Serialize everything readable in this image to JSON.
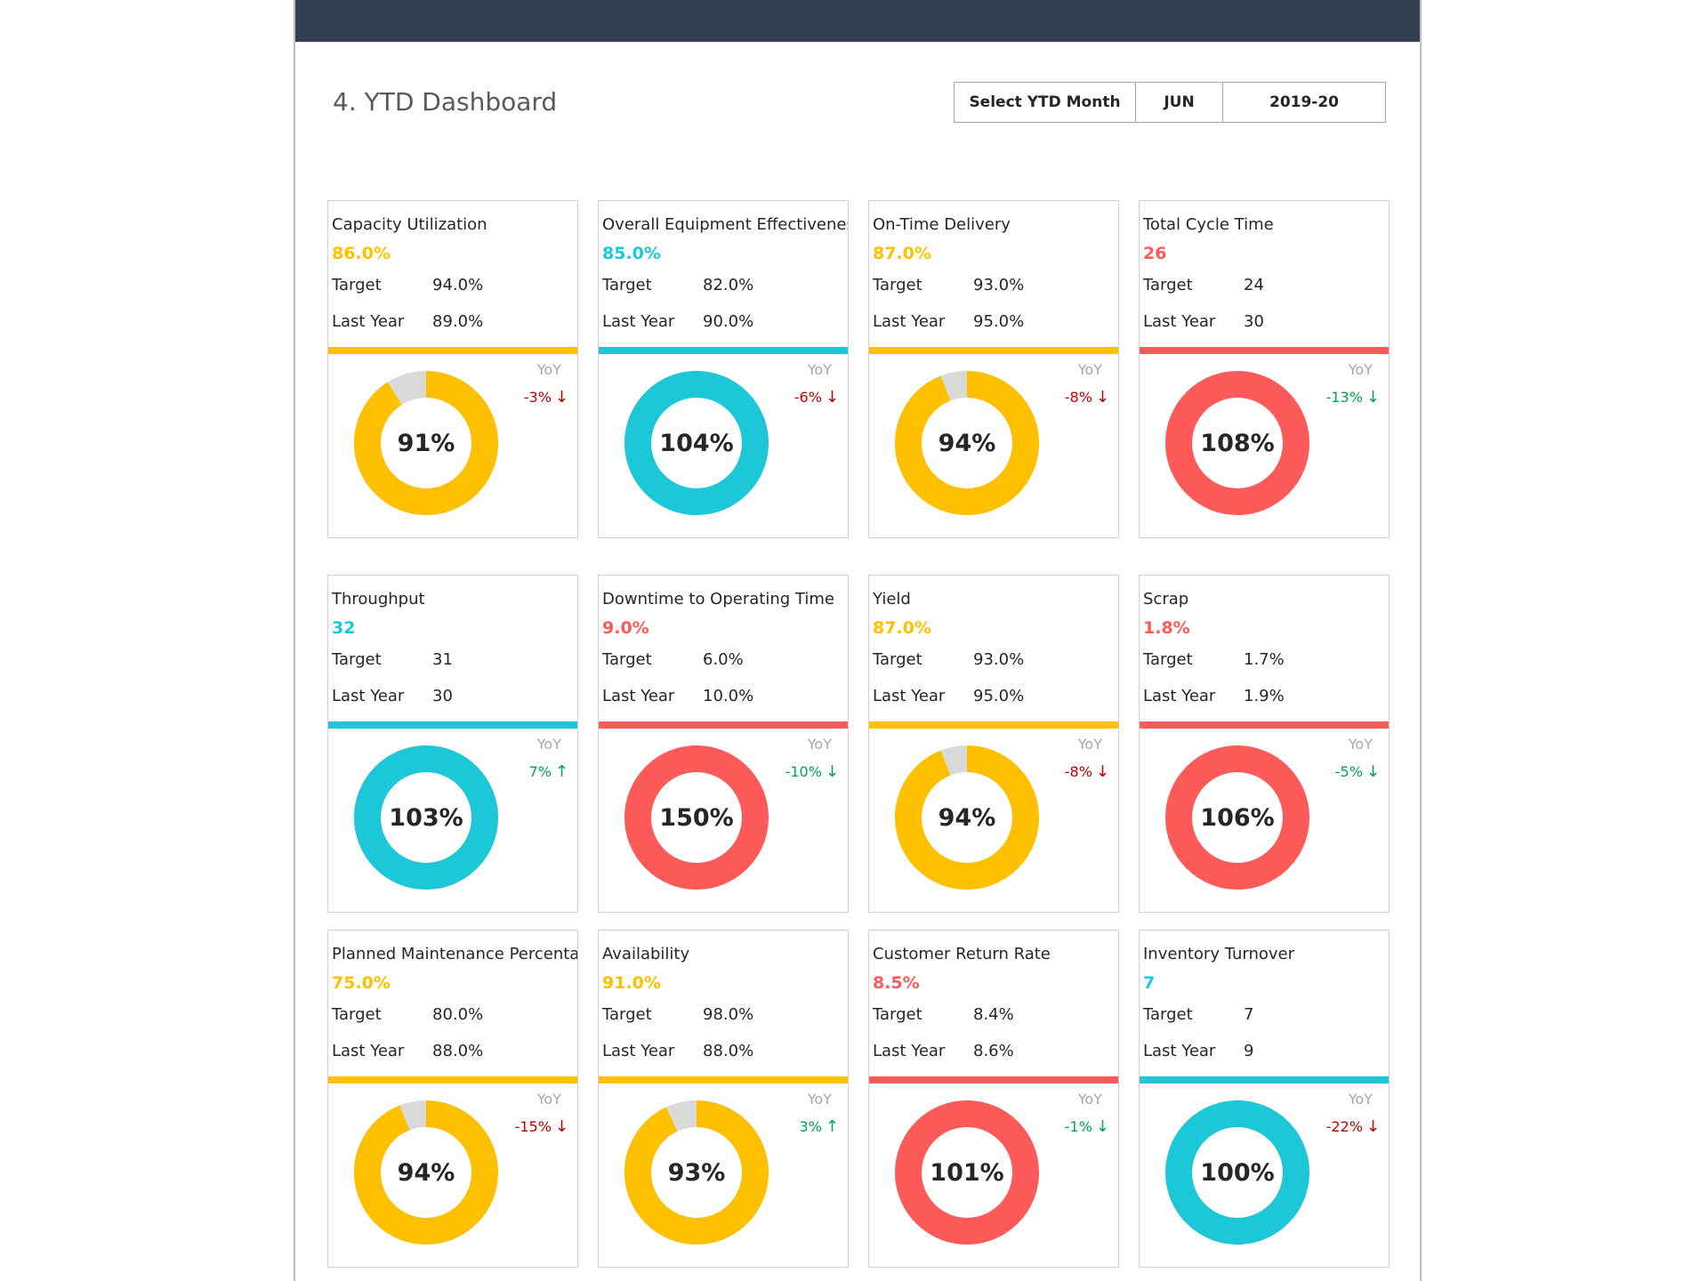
{
  "dashboard": {
    "title": "4. YTD Dashboard",
    "selector": {
      "label": "Select YTD Month",
      "month": "JUN",
      "year": "2019-20"
    }
  },
  "labels": {
    "target": "Target",
    "last_year": "Last Year",
    "yoy": "YoY"
  },
  "colors": {
    "header": "#333f50",
    "yellow": "#ffc000",
    "cyan": "#1cc7d8",
    "red": "#ff5a5a",
    "neg": "#c00000",
    "pos": "#00a651",
    "track": "#d9d9d9"
  },
  "cards": [
    {
      "name": "Capacity Utilization",
      "value": "86.0%",
      "target": "94.0%",
      "last_year": "89.0%",
      "color": "yellow",
      "pct": "91%",
      "fill": 0.91,
      "yoy": "-3%",
      "yoy_dir": "down",
      "yoy_color": "neg"
    },
    {
      "name": "Overall Equipment Effectiveness",
      "value": "85.0%",
      "target": "82.0%",
      "last_year": "90.0%",
      "color": "cyan",
      "pct": "104%",
      "fill": 1.0,
      "yoy": "-6%",
      "yoy_dir": "down",
      "yoy_color": "neg"
    },
    {
      "name": "On-Time Delivery",
      "value": "87.0%",
      "target": "93.0%",
      "last_year": "95.0%",
      "color": "yellow",
      "pct": "94%",
      "fill": 0.94,
      "yoy": "-8%",
      "yoy_dir": "down",
      "yoy_color": "neg"
    },
    {
      "name": "Total Cycle Time",
      "value": "26",
      "target": "24",
      "last_year": "30",
      "color": "red",
      "pct": "108%",
      "fill": 1.0,
      "yoy": "-13%",
      "yoy_dir": "down",
      "yoy_color": "pos"
    },
    {
      "name": "Throughput",
      "value": "32",
      "target": "31",
      "last_year": "30",
      "color": "cyan",
      "pct": "103%",
      "fill": 1.0,
      "yoy": "7%",
      "yoy_dir": "up",
      "yoy_color": "pos"
    },
    {
      "name": "Downtime to Operating Time",
      "value": "9.0%",
      "target": "6.0%",
      "last_year": "10.0%",
      "color": "red",
      "pct": "150%",
      "fill": 1.0,
      "yoy": "-10%",
      "yoy_dir": "down",
      "yoy_color": "pos"
    },
    {
      "name": "Yield",
      "value": "87.0%",
      "target": "93.0%",
      "last_year": "95.0%",
      "color": "yellow",
      "pct": "94%",
      "fill": 0.94,
      "yoy": "-8%",
      "yoy_dir": "down",
      "yoy_color": "neg"
    },
    {
      "name": "Scrap",
      "value": "1.8%",
      "target": "1.7%",
      "last_year": "1.9%",
      "color": "red",
      "pct": "106%",
      "fill": 1.0,
      "yoy": "-5%",
      "yoy_dir": "down",
      "yoy_color": "pos"
    },
    {
      "name": "Planned Maintenance Percentage",
      "value": "75.0%",
      "target": "80.0%",
      "last_year": "88.0%",
      "color": "yellow",
      "pct": "94%",
      "fill": 0.94,
      "yoy": "-15%",
      "yoy_dir": "down",
      "yoy_color": "neg"
    },
    {
      "name": "Availability",
      "value": "91.0%",
      "target": "98.0%",
      "last_year": "88.0%",
      "color": "yellow",
      "pct": "93%",
      "fill": 0.93,
      "yoy": "3%",
      "yoy_dir": "up",
      "yoy_color": "pos"
    },
    {
      "name": "Customer Return Rate",
      "value": "8.5%",
      "target": "8.4%",
      "last_year": "8.6%",
      "color": "red",
      "pct": "101%",
      "fill": 1.0,
      "yoy": "-1%",
      "yoy_dir": "down",
      "yoy_color": "pos"
    },
    {
      "name": "Inventory Turnover",
      "value": "7",
      "target": "7",
      "last_year": "9",
      "color": "cyan",
      "pct": "100%",
      "fill": 1.0,
      "yoy": "-22%",
      "yoy_dir": "down",
      "yoy_color": "neg"
    }
  ]
}
